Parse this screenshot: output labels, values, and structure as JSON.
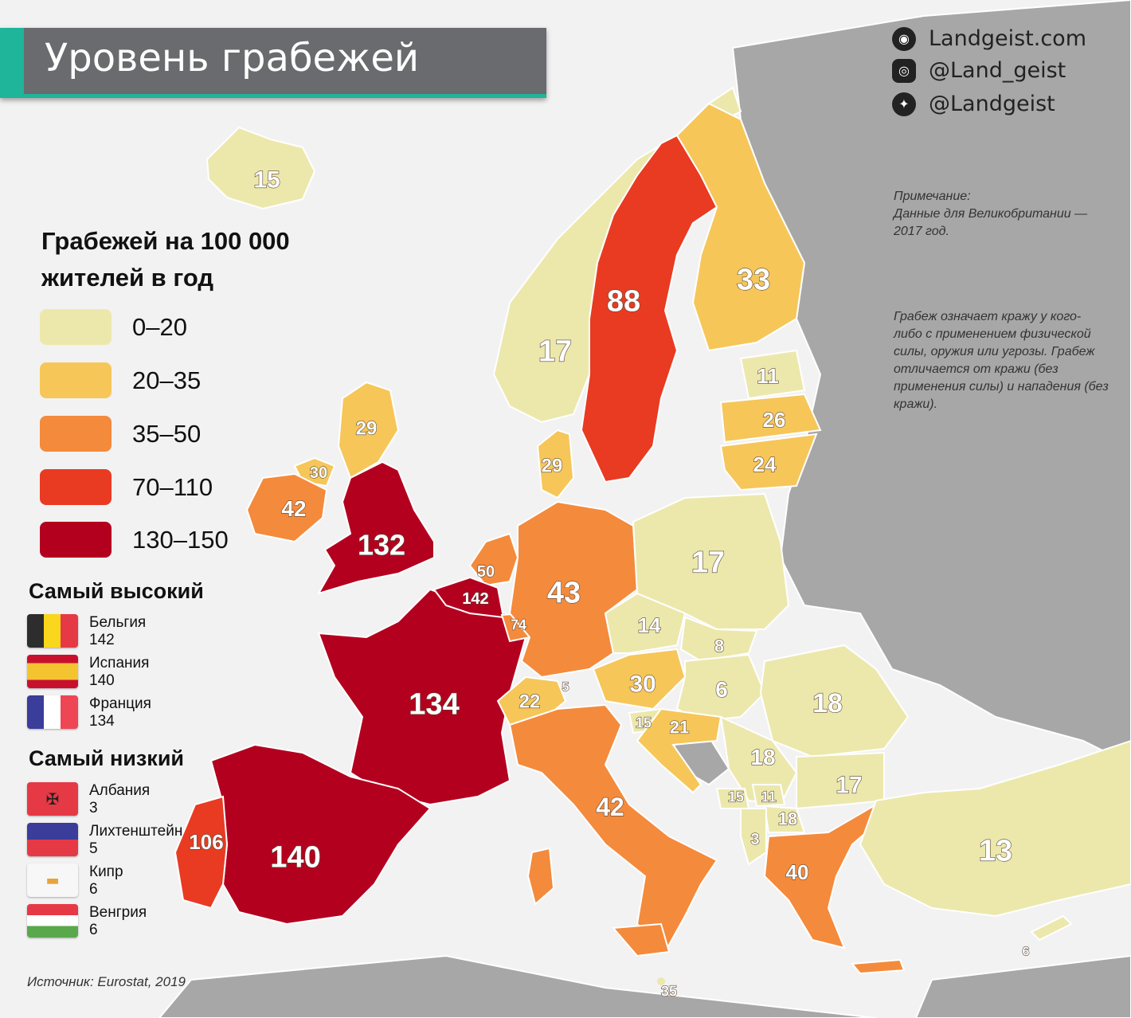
{
  "header": {
    "title": "Уровень грабежей"
  },
  "brand": [
    {
      "icon": "globe-icon",
      "text": "Landgeist.com"
    },
    {
      "icon": "instagram-icon",
      "text": "@Land_geist"
    },
    {
      "icon": "twitter-icon",
      "text": "@Landgeist"
    }
  ],
  "notes": {
    "uk_note": "Примечание:\nДанные для Великобритании —\n2017 год.",
    "definition": "Грабеж означает кражу у кого-либо с применением физической силы, оружия или угрозы. Грабеж отличается от кражи (без применения силы) и нападения (без кражи)."
  },
  "legend": {
    "title": "Грабежей на 100 000 жителей в год",
    "items": [
      {
        "label": "0–20",
        "color": "#ece8ac"
      },
      {
        "label": "20–35",
        "color": "#f6c659"
      },
      {
        "label": "35–50",
        "color": "#f48a3b"
      },
      {
        "label": "70–110",
        "color": "#e83b22"
      },
      {
        "label": "130–150",
        "color": "#b4001f"
      }
    ]
  },
  "highest": {
    "title": "Самый высокий",
    "items": [
      {
        "country": "Бельгия",
        "value": "142",
        "flag": "belgium-flag"
      },
      {
        "country": "Испания",
        "value": "140",
        "flag": "spain-flag"
      },
      {
        "country": "Франция",
        "value": "134",
        "flag": "france-flag"
      }
    ]
  },
  "lowest": {
    "title": "Самый низкий",
    "items": [
      {
        "country": "Албания",
        "value": "3",
        "flag": "albania-flag"
      },
      {
        "country": "Лихтенштейн",
        "value": "5",
        "flag": "liechtenstein-flag"
      },
      {
        "country": "Кипр",
        "value": "6",
        "flag": "cyprus-flag"
      },
      {
        "country": "Венгрия",
        "value": "6",
        "flag": "hungary-flag"
      }
    ]
  },
  "source": "Источник: Eurostat, 2019",
  "map_values": {
    "iceland": "15",
    "norway": "17",
    "sweden": "88",
    "finland": "33",
    "estonia": "11",
    "latvia": "26",
    "lithuania": "24",
    "denmark": "29",
    "scotland": "29",
    "northern_ireland": "30",
    "ireland": "42",
    "uk": "132",
    "netherlands": "50",
    "belgium": "142",
    "luxembourg": "74",
    "germany": "43",
    "poland": "17",
    "czechia": "14",
    "slovakia": "8",
    "austria": "30",
    "hungary": "6",
    "romania": "18",
    "switzerland": "22",
    "liechtenstein": "5",
    "slovenia": "15",
    "croatia": "21",
    "serbia": "18",
    "bulgaria": "17",
    "montenegro": "15",
    "kosovo": "11",
    "north_macedonia": "18",
    "albania": "3",
    "greece": "40",
    "turkey": "13",
    "cyprus": "6",
    "malta": "35",
    "france": "134",
    "spain": "140",
    "portugal": "106",
    "italy": "42"
  }
}
